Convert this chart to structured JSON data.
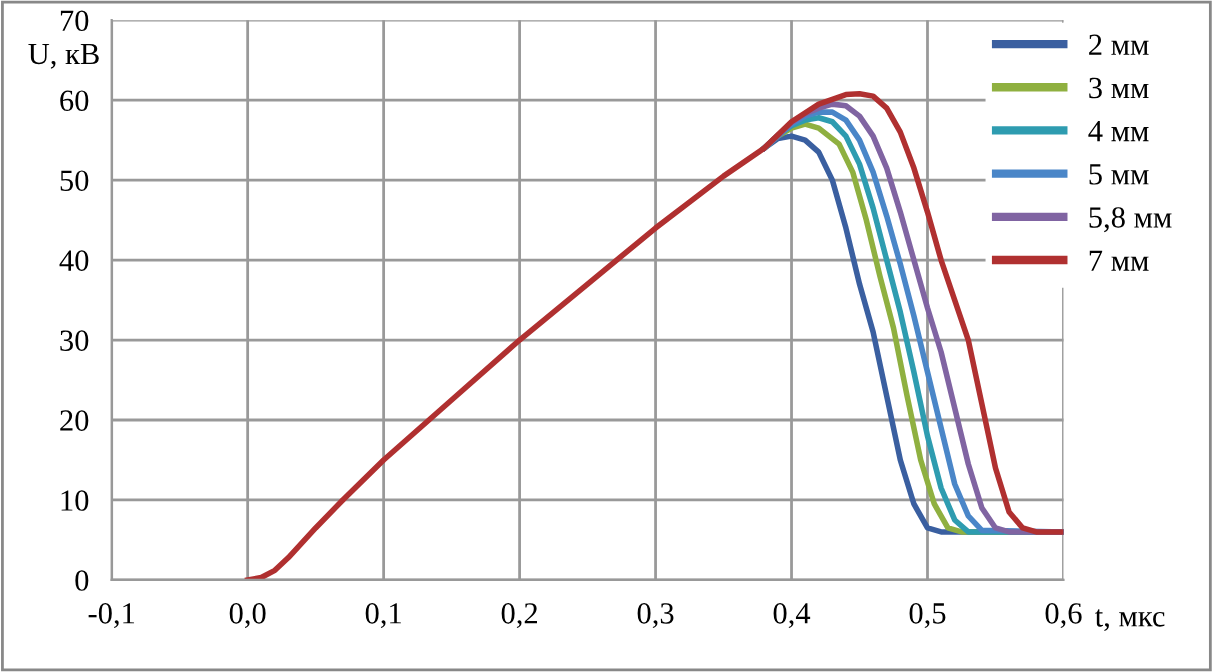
{
  "chart_data": {
    "type": "line",
    "xlabel": "t, мкс",
    "ylabel": "U, кВ",
    "xlim": [
      -0.1,
      0.6
    ],
    "ylim": [
      0,
      70
    ],
    "xticks": [
      {
        "value": -0.1,
        "label": "-0,1"
      },
      {
        "value": 0.0,
        "label": "0,0"
      },
      {
        "value": 0.1,
        "label": "0,1"
      },
      {
        "value": 0.2,
        "label": "0,2"
      },
      {
        "value": 0.3,
        "label": "0,3"
      },
      {
        "value": 0.4,
        "label": "0,4"
      },
      {
        "value": 0.5,
        "label": "0,5"
      },
      {
        "value": 0.6,
        "label": "0,6"
      }
    ],
    "yticks": [
      0,
      10,
      20,
      30,
      40,
      50,
      60,
      70
    ],
    "grid": true,
    "legend": "top right",
    "marker": "none",
    "line_style": "solid",
    "series": [
      {
        "name": "2 мм",
        "color": "#3a5fa0",
        "x": [
          0.38,
          0.39,
          0.4,
          0.41,
          0.42,
          0.43,
          0.44,
          0.45,
          0.46,
          0.47,
          0.48,
          0.49,
          0.5,
          0.51,
          0.6
        ],
        "values": [
          54,
          55.2,
          55.5,
          55,
          53.5,
          50,
          44,
          37,
          31,
          23,
          15,
          9.5,
          6.5,
          6,
          6
        ]
      },
      {
        "name": "3 мм",
        "color": "#8fb040",
        "x": [
          0.38,
          0.39,
          0.4,
          0.41,
          0.42,
          0.435,
          0.445,
          0.455,
          0.465,
          0.475,
          0.485,
          0.495,
          0.505,
          0.515,
          0.525,
          0.6
        ],
        "values": [
          54,
          55.5,
          56.5,
          57,
          56.5,
          54.5,
          51,
          45,
          38,
          31.5,
          23,
          15,
          9.5,
          6.5,
          6,
          6
        ]
      },
      {
        "name": "4 мм",
        "color": "#2e9cb0",
        "x": [
          0.38,
          0.39,
          0.4,
          0.41,
          0.42,
          0.43,
          0.44,
          0.45,
          0.46,
          0.47,
          0.48,
          0.49,
          0.5,
          0.51,
          0.52,
          0.53,
          0.6
        ],
        "values": [
          54,
          55.6,
          56.8,
          57.5,
          57.8,
          57.3,
          55.5,
          52,
          46.5,
          40,
          33.5,
          26,
          18,
          11.5,
          7.5,
          6,
          6
        ]
      },
      {
        "name": "5 мм",
        "color": "#4a86c8",
        "x": [
          0.38,
          0.4,
          0.41,
          0.42,
          0.43,
          0.44,
          0.45,
          0.46,
          0.47,
          0.48,
          0.49,
          0.5,
          0.51,
          0.52,
          0.53,
          0.54,
          0.6
        ],
        "values": [
          54,
          57,
          58,
          58.5,
          58.5,
          57.5,
          55,
          51,
          45.5,
          39.5,
          33,
          26,
          19,
          12,
          8,
          6.2,
          6
        ]
      },
      {
        "name": "5,8 мм",
        "color": "#8064a2",
        "x": [
          0.38,
          0.4,
          0.41,
          0.42,
          0.43,
          0.44,
          0.45,
          0.46,
          0.47,
          0.48,
          0.49,
          0.5,
          0.51,
          0.52,
          0.53,
          0.54,
          0.55,
          0.56,
          0.6
        ],
        "values": [
          54,
          57.2,
          58.3,
          59,
          59.5,
          59.3,
          58,
          55.5,
          51.5,
          46,
          40,
          34,
          28.5,
          21.5,
          14.5,
          9,
          6.5,
          6,
          6
        ]
      },
      {
        "name": "7 мм",
        "color": "#b03030",
        "x": [
          0,
          0.01,
          0.02,
          0.03,
          0.05,
          0.07,
          0.1,
          0.15,
          0.2,
          0.25,
          0.3,
          0.35,
          0.38,
          0.4,
          0.42,
          0.44,
          0.45,
          0.46,
          0.47,
          0.48,
          0.49,
          0.5,
          0.51,
          0.52,
          0.53,
          0.54,
          0.55,
          0.56,
          0.57,
          0.58,
          0.6
        ],
        "values": [
          0,
          0.3,
          1.2,
          2.8,
          6.5,
          10,
          15,
          22.5,
          30,
          37,
          44,
          50.5,
          54,
          57.3,
          59.5,
          60.7,
          60.8,
          60.5,
          59,
          56,
          51.5,
          46,
          40,
          35,
          30,
          22,
          14,
          8.5,
          6.5,
          6,
          6
        ]
      }
    ]
  }
}
